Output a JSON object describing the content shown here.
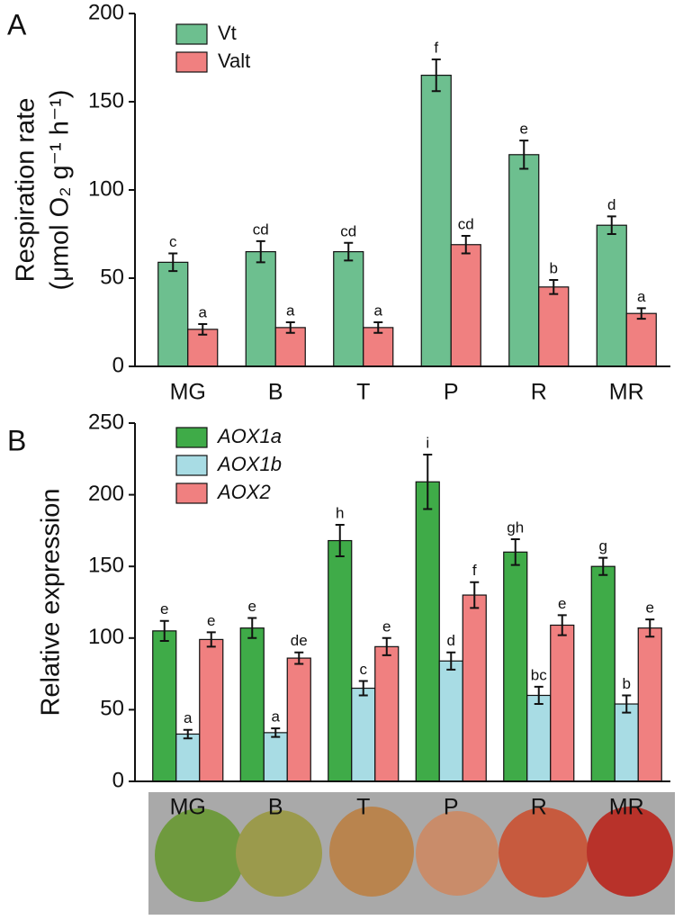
{
  "chart_data": [
    {
      "type": "bar",
      "panel_label": "A",
      "ylabel": [
        "Respiration rate",
        "(μmol O₂ g⁻¹ h⁻¹)"
      ],
      "categories": [
        "MG",
        "B",
        "T",
        "P",
        "R",
        "MR"
      ],
      "series": [
        {
          "name": "Vt",
          "color": "#6dbf8f",
          "values": [
            59,
            65,
            65,
            165,
            120,
            80
          ],
          "errors": [
            5,
            6,
            5,
            9,
            8,
            5
          ],
          "letters": [
            "c",
            "cd",
            "cd",
            "f",
            "e",
            "d"
          ]
        },
        {
          "name": "Valt",
          "color": "#f08080",
          "values": [
            21,
            22,
            22,
            69,
            45,
            30
          ],
          "errors": [
            3,
            3,
            3,
            5,
            4,
            3
          ],
          "letters": [
            "a",
            "a",
            "a",
            "cd",
            "b",
            "a"
          ]
        }
      ],
      "ylim": [
        0,
        200
      ],
      "yticks": [
        0,
        50,
        100,
        150,
        200
      ],
      "legend_italic": false
    },
    {
      "type": "bar",
      "panel_label": "B",
      "ylabel": [
        "Relative expression"
      ],
      "categories": [
        "MG",
        "B",
        "T",
        "P",
        "R",
        "MR"
      ],
      "series": [
        {
          "name": "AOX1a",
          "color": "#3fab48",
          "values": [
            105,
            107,
            168,
            209,
            160,
            150
          ],
          "errors": [
            7,
            7,
            11,
            19,
            9,
            6
          ],
          "letters": [
            "e",
            "e",
            "h",
            "i",
            "gh",
            "g"
          ]
        },
        {
          "name": "AOX1b",
          "color": "#a8dce4",
          "values": [
            33,
            34,
            65,
            84,
            60,
            54
          ],
          "errors": [
            3,
            3,
            5,
            6,
            6,
            6
          ],
          "letters": [
            "a",
            "a",
            "c",
            "d",
            "bc",
            "b"
          ]
        },
        {
          "name": "AOX2",
          "color": "#f08080",
          "values": [
            99,
            86,
            94,
            130,
            109,
            107
          ],
          "errors": [
            5,
            4,
            6,
            9,
            7,
            6
          ],
          "letters": [
            "e",
            "de",
            "e",
            "f",
            "e",
            "e"
          ]
        }
      ],
      "ylim": [
        0,
        250
      ],
      "yticks": [
        0,
        50,
        100,
        150,
        200,
        250
      ],
      "legend_italic": true
    }
  ]
}
